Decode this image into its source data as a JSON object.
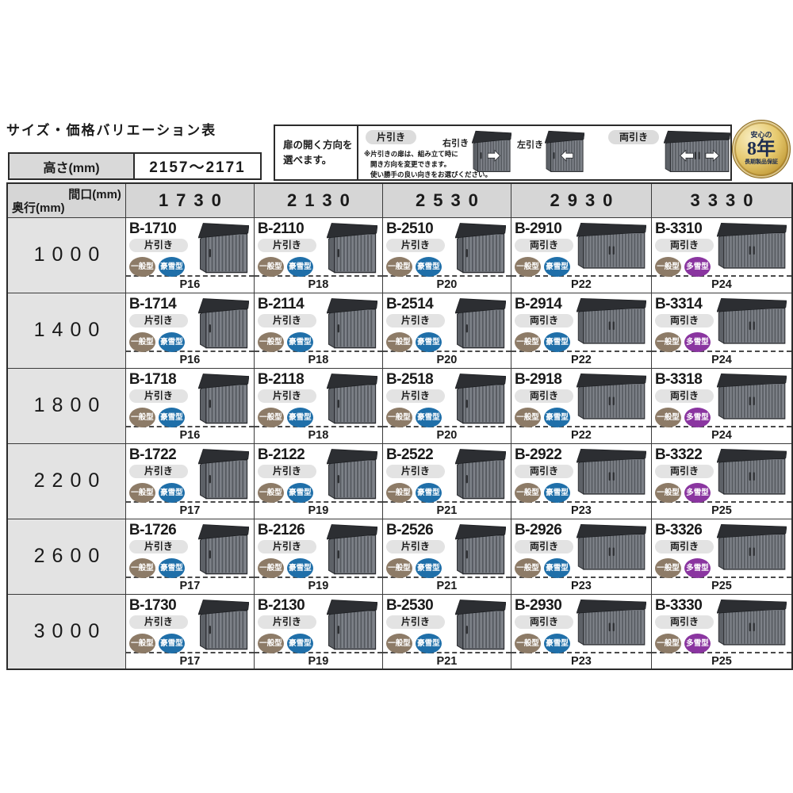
{
  "title": "サイズ・価格バリエーション表",
  "height_row": {
    "label": "高さ(mm)",
    "value": "2157〜2171"
  },
  "warranty_badge": {
    "top": "安心の",
    "years": "8年",
    "bottom": "長期製品保証"
  },
  "legend": {
    "intro_line1": "扉の開く方向を",
    "intro_line2": "選べます。",
    "single_slide_label": "片引き",
    "note_lines": [
      "※片引きの扉は、組み立て時に",
      "開き方向を変更できます。",
      "使い勝手の良い向きをお選びください。"
    ],
    "right_slide_label": "右引き",
    "left_slide_label": "左引き",
    "double_slide_label": "両引き"
  },
  "table": {
    "corner_top": "間口(mm)",
    "corner_bottom": "奥行(mm)",
    "columns": [
      "1730",
      "2130",
      "2530",
      "2930",
      "3330"
    ],
    "rows": [
      {
        "depth": "1000",
        "cells": [
          {
            "model": "B-1710",
            "door": "片引き",
            "types": [
              "一般型",
              "豪雪型"
            ],
            "page": "P16"
          },
          {
            "model": "B-2110",
            "door": "片引き",
            "types": [
              "一般型",
              "豪雪型"
            ],
            "page": "P18"
          },
          {
            "model": "B-2510",
            "door": "片引き",
            "types": [
              "一般型",
              "豪雪型"
            ],
            "page": "P20"
          },
          {
            "model": "B-2910",
            "door": "両引き",
            "types": [
              "一般型",
              "豪雪型"
            ],
            "page": "P22"
          },
          {
            "model": "B-3310",
            "door": "両引き",
            "types": [
              "一般型",
              "多雪型"
            ],
            "page": "P24"
          }
        ]
      },
      {
        "depth": "1400",
        "cells": [
          {
            "model": "B-1714",
            "door": "片引き",
            "types": [
              "一般型",
              "豪雪型"
            ],
            "page": "P16"
          },
          {
            "model": "B-2114",
            "door": "片引き",
            "types": [
              "一般型",
              "豪雪型"
            ],
            "page": "P18"
          },
          {
            "model": "B-2514",
            "door": "片引き",
            "types": [
              "一般型",
              "豪雪型"
            ],
            "page": "P20"
          },
          {
            "model": "B-2914",
            "door": "両引き",
            "types": [
              "一般型",
              "豪雪型"
            ],
            "page": "P22"
          },
          {
            "model": "B-3314",
            "door": "両引き",
            "types": [
              "一般型",
              "多雪型"
            ],
            "page": "P24"
          }
        ]
      },
      {
        "depth": "1800",
        "cells": [
          {
            "model": "B-1718",
            "door": "片引き",
            "types": [
              "一般型",
              "豪雪型"
            ],
            "page": "P16"
          },
          {
            "model": "B-2118",
            "door": "片引き",
            "types": [
              "一般型",
              "豪雪型"
            ],
            "page": "P18"
          },
          {
            "model": "B-2518",
            "door": "片引き",
            "types": [
              "一般型",
              "豪雪型"
            ],
            "page": "P20"
          },
          {
            "model": "B-2918",
            "door": "両引き",
            "types": [
              "一般型",
              "豪雪型"
            ],
            "page": "P22"
          },
          {
            "model": "B-3318",
            "door": "両引き",
            "types": [
              "一般型",
              "多雪型"
            ],
            "page": "P24"
          }
        ]
      },
      {
        "depth": "2200",
        "cells": [
          {
            "model": "B-1722",
            "door": "片引き",
            "types": [
              "一般型",
              "豪雪型"
            ],
            "page": "P17"
          },
          {
            "model": "B-2122",
            "door": "片引き",
            "types": [
              "一般型",
              "豪雪型"
            ],
            "page": "P19"
          },
          {
            "model": "B-2522",
            "door": "片引き",
            "types": [
              "一般型",
              "豪雪型"
            ],
            "page": "P21"
          },
          {
            "model": "B-2922",
            "door": "両引き",
            "types": [
              "一般型",
              "豪雪型"
            ],
            "page": "P23"
          },
          {
            "model": "B-3322",
            "door": "両引き",
            "types": [
              "一般型",
              "多雪型"
            ],
            "page": "P25"
          }
        ]
      },
      {
        "depth": "2600",
        "cells": [
          {
            "model": "B-1726",
            "door": "片引き",
            "types": [
              "一般型",
              "豪雪型"
            ],
            "page": "P17"
          },
          {
            "model": "B-2126",
            "door": "片引き",
            "types": [
              "一般型",
              "豪雪型"
            ],
            "page": "P19"
          },
          {
            "model": "B-2526",
            "door": "片引き",
            "types": [
              "一般型",
              "豪雪型"
            ],
            "page": "P21"
          },
          {
            "model": "B-2926",
            "door": "両引き",
            "types": [
              "一般型",
              "豪雪型"
            ],
            "page": "P23"
          },
          {
            "model": "B-3326",
            "door": "両引き",
            "types": [
              "一般型",
              "多雪型"
            ],
            "page": "P25"
          }
        ]
      },
      {
        "depth": "3000",
        "cells": [
          {
            "model": "B-1730",
            "door": "片引き",
            "types": [
              "一般型",
              "豪雪型"
            ],
            "page": "P17"
          },
          {
            "model": "B-2130",
            "door": "片引き",
            "types": [
              "一般型",
              "豪雪型"
            ],
            "page": "P19"
          },
          {
            "model": "B-2530",
            "door": "片引き",
            "types": [
              "一般型",
              "豪雪型"
            ],
            "page": "P21"
          },
          {
            "model": "B-2930",
            "door": "両引き",
            "types": [
              "一般型",
              "豪雪型"
            ],
            "page": "P23"
          },
          {
            "model": "B-3330",
            "door": "両引き",
            "types": [
              "一般型",
              "多雪型"
            ],
            "page": "P25"
          }
        ]
      }
    ]
  },
  "type_colors": {
    "一般型": "#8d7b67",
    "豪雪型": "#1f6fa9",
    "多雪型": "#8a35a0"
  },
  "shed_colors": {
    "body": "#7e8289",
    "stripe": "#565a60",
    "roof": "#2c2e32",
    "side": "#5d6167",
    "outline": "#2a2c30"
  }
}
